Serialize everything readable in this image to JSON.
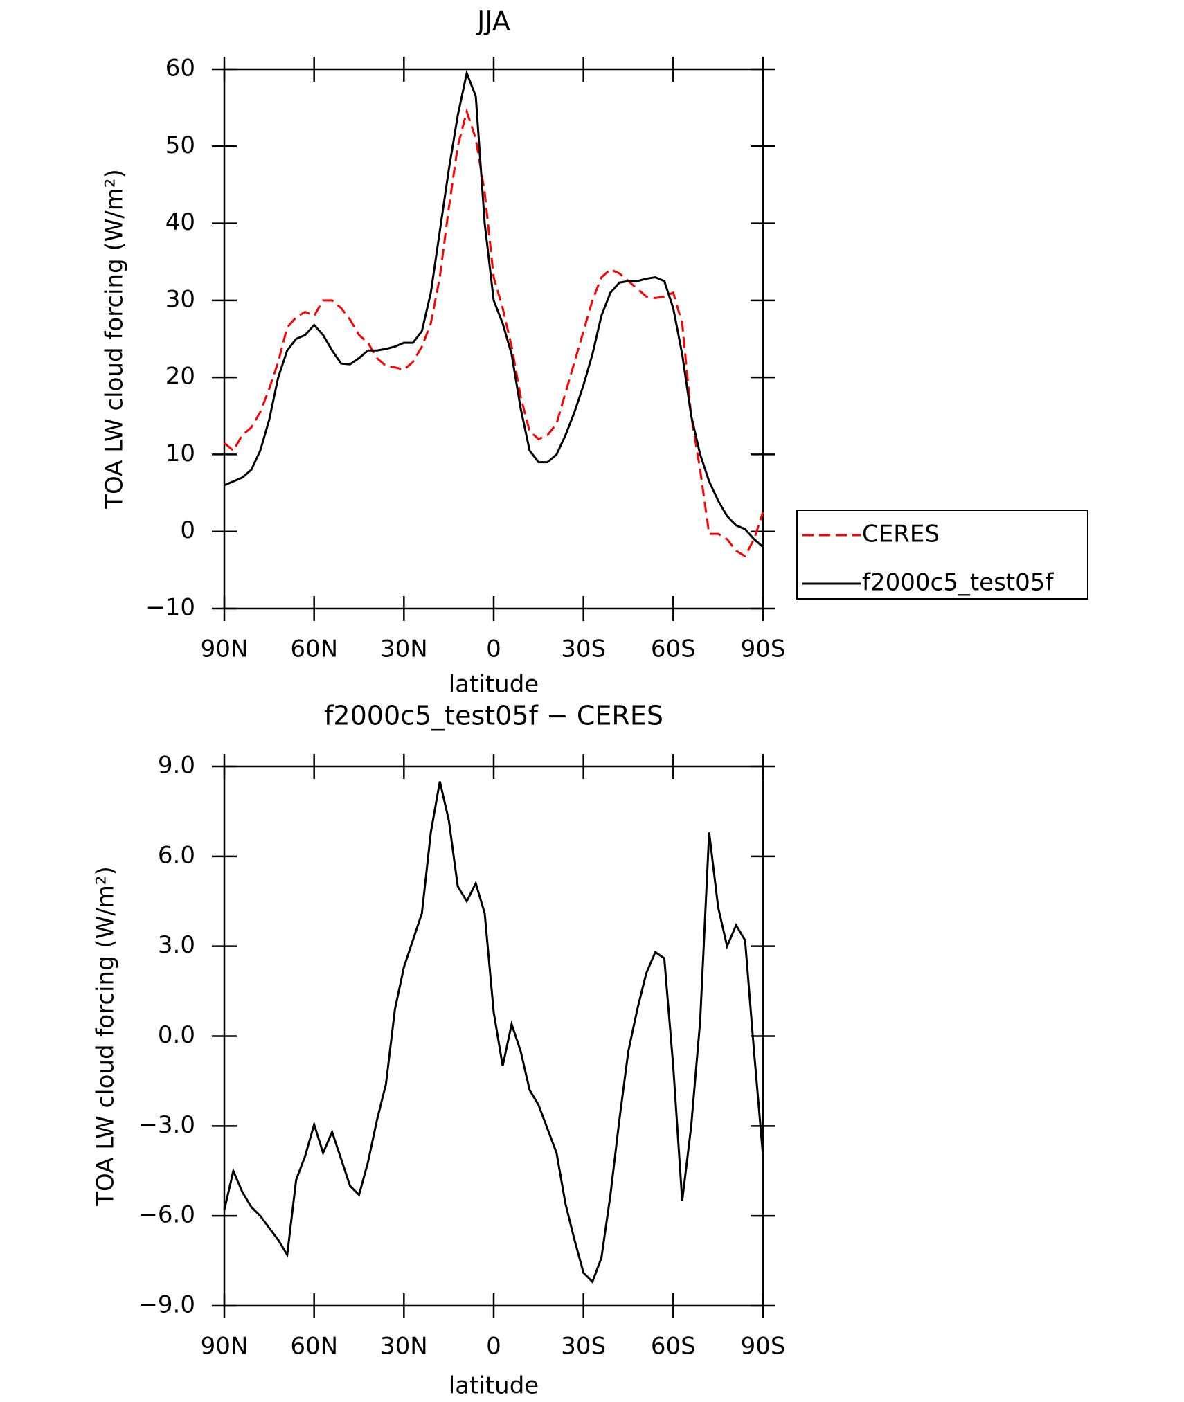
{
  "chart_data": [
    {
      "type": "line",
      "title": "JJA",
      "xlabel": "latitude",
      "ylabel": "TOA LW cloud forcing (W/m²)",
      "legend": "right",
      "xlim": [
        90,
        -90
      ],
      "ylim": [
        -10,
        60
      ],
      "xticks": [
        {
          "value": 90,
          "label": "90N"
        },
        {
          "value": 60,
          "label": "60N"
        },
        {
          "value": 30,
          "label": "30N"
        },
        0,
        {
          "value": -30,
          "label": "30S"
        },
        {
          "value": -60,
          "label": "60S"
        },
        {
          "value": -90,
          "label": "90S"
        }
      ],
      "yticks": [
        {
          "value": -10,
          "label": "−10"
        },
        0,
        10,
        20,
        30,
        40,
        50,
        60
      ],
      "x": [
        90,
        87,
        84,
        81,
        78,
        75,
        72,
        69,
        66,
        63,
        60,
        57,
        54,
        51,
        48,
        45,
        42,
        39,
        36,
        33,
        30,
        27,
        24,
        21,
        18,
        15,
        12,
        9,
        6,
        3,
        0,
        -3,
        -6,
        -9,
        -12,
        -15,
        -18,
        -21,
        -24,
        -27,
        -30,
        -33,
        -36,
        -39,
        -42,
        -45,
        -48,
        -51,
        -54,
        -57,
        -60,
        -63,
        -66,
        -69,
        -72,
        -75,
        -78,
        -81,
        -84,
        -87,
        -90
      ],
      "series": [
        {
          "name": "CERES",
          "color": "#ff0000",
          "dash": true,
          "values": [
            11.5,
            10.5,
            12.5,
            13.5,
            15.5,
            18.5,
            22,
            26.5,
            27.8,
            28.5,
            28,
            30,
            30,
            29,
            27.5,
            25.5,
            24.5,
            22.5,
            21.5,
            21.3,
            21,
            22,
            24,
            27,
            33,
            42,
            50,
            54.5,
            51,
            44,
            33,
            29,
            24,
            17.5,
            13,
            12,
            12.5,
            14,
            18,
            22,
            26,
            30,
            33,
            34,
            33.5,
            32.5,
            31.5,
            30.5,
            30.3,
            30.5,
            31,
            27,
            15,
            8,
            -0.3,
            -0.3,
            -1,
            -2.5,
            -3.2,
            -1,
            2.5
          ]
        },
        {
          "name": "f2000c5_test05f",
          "color": "#000000",
          "dash": false,
          "values": [
            6,
            6.5,
            7,
            8,
            10.5,
            14.5,
            20,
            23.5,
            25,
            25.5,
            26.8,
            25.5,
            23.5,
            21.8,
            21.7,
            22.5,
            23.5,
            23.5,
            23.7,
            24,
            24.5,
            24.5,
            26,
            31,
            39,
            47,
            54,
            59.5,
            56.5,
            40,
            30,
            27,
            23,
            16,
            10.5,
            9,
            9,
            10,
            12.5,
            15.5,
            19,
            23,
            28,
            31,
            32.3,
            32.5,
            32.5,
            32.8,
            33,
            32.5,
            29,
            23,
            15,
            10,
            6.5,
            4,
            2,
            0.8,
            0.3,
            -1,
            -2
          ]
        }
      ]
    },
    {
      "type": "line",
      "title": "f2000c5_test05f − CERES",
      "xlabel": "latitude",
      "ylabel": "TOA LW cloud forcing (W/m²)",
      "xlim": [
        90,
        -90
      ],
      "ylim": [
        -9,
        9
      ],
      "xticks": [
        {
          "value": 90,
          "label": "90N"
        },
        {
          "value": 60,
          "label": "60N"
        },
        {
          "value": 30,
          "label": "30N"
        },
        0,
        {
          "value": -30,
          "label": "30S"
        },
        {
          "value": -60,
          "label": "60S"
        },
        {
          "value": -90,
          "label": "90S"
        }
      ],
      "yticks": [
        {
          "value": -9,
          "label": "−9.0"
        },
        {
          "value": -6,
          "label": "−6.0"
        },
        {
          "value": -3,
          "label": "−3.0"
        },
        {
          "value": 0,
          "label": "0.0"
        },
        {
          "value": 3,
          "label": "3.0"
        },
        {
          "value": 6,
          "label": "6.0"
        },
        {
          "value": 9,
          "label": "9.0"
        }
      ],
      "x": [
        90,
        87,
        84,
        81,
        78,
        75,
        72,
        69,
        66,
        63,
        60,
        57,
        54,
        51,
        48,
        45,
        42,
        39,
        36,
        33,
        30,
        27,
        24,
        21,
        18,
        15,
        12,
        9,
        6,
        3,
        0,
        -3,
        -6,
        -9,
        -12,
        -15,
        -18,
        -21,
        -24,
        -27,
        -30,
        -33,
        -36,
        -39,
        -42,
        -45,
        -48,
        -51,
        -54,
        -57,
        -60,
        -63,
        -66,
        -69,
        -72,
        -75,
        -78,
        -81,
        -84,
        -87,
        -90
      ],
      "series": [
        {
          "color": "#000000",
          "dash": false,
          "values": [
            -5.8,
            -4.5,
            -5.2,
            -5.7,
            -6,
            -6.4,
            -6.8,
            -7.3,
            -4.8,
            -4,
            -2.95,
            -3.9,
            -3.2,
            -4.1,
            -5,
            -5.3,
            -4.2,
            -2.8,
            -1.6,
            0.9,
            2.3,
            3.2,
            4.1,
            6.8,
            8.5,
            7.2,
            5,
            4.5,
            5.1,
            4.1,
            0.8,
            -1,
            0.4,
            -0.5,
            -1.8,
            -2.3,
            -3.1,
            -3.9,
            -5.6,
            -6.8,
            -7.9,
            -8.2,
            -7.4,
            -5.3,
            -2.8,
            -0.5,
            0.9,
            2.1,
            2.8,
            2.6,
            -1,
            -5.5,
            -3,
            0.5,
            6.8,
            4.3,
            3,
            3.7,
            3.2,
            -0.5,
            -4
          ]
        }
      ]
    }
  ]
}
